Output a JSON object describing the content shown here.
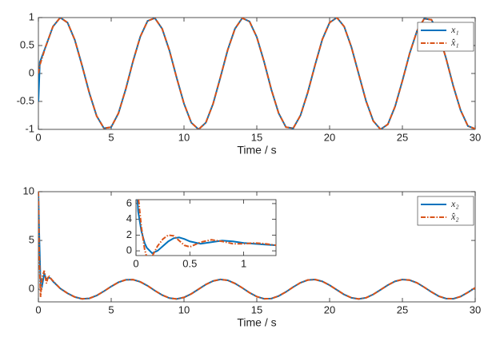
{
  "chart_data": [
    {
      "type": "line",
      "xlabel": "Time / s",
      "xlim": [
        0,
        30
      ],
      "ylim": [
        -1,
        1
      ],
      "xticks": [
        0,
        5,
        10,
        15,
        20,
        25,
        30
      ],
      "yticks": [
        -1,
        -0.5,
        0,
        0.5,
        1
      ],
      "legend": "northeast",
      "x": [
        0,
        0.1,
        0.5,
        1,
        1.5,
        2,
        2.5,
        3,
        3.5,
        4,
        4.5,
        5,
        5.5,
        6,
        6.5,
        7,
        7.5,
        8,
        8.5,
        9,
        9.5,
        10,
        10.5,
        11,
        11.5,
        12,
        12.5,
        13,
        13.5,
        14,
        14.5,
        15,
        15.5,
        16,
        16.5,
        17,
        17.5,
        18,
        18.5,
        19,
        19.5,
        20,
        20.5,
        21,
        21.5,
        22,
        22.5,
        23,
        23.5,
        24,
        24.5,
        25,
        25.5,
        26,
        26.5,
        27,
        27.5,
        28,
        28.5,
        29,
        29.5,
        30
      ],
      "series": [
        {
          "name": "x₁",
          "color": "#0072bd",
          "dash": false,
          "values": [
            -0.5,
            0.2,
            0.48,
            0.84,
            1.0,
            0.91,
            0.6,
            0.14,
            -0.35,
            -0.76,
            -0.98,
            -0.96,
            -0.71,
            -0.28,
            0.22,
            0.66,
            0.94,
            0.99,
            0.8,
            0.41,
            -0.08,
            -0.54,
            -0.88,
            -1.0,
            -0.88,
            -0.54,
            -0.07,
            0.42,
            0.8,
            0.99,
            0.93,
            0.65,
            0.21,
            -0.29,
            -0.71,
            -0.96,
            -0.98,
            -0.75,
            -0.34,
            0.15,
            0.61,
            0.91,
            1.0,
            0.84,
            0.47,
            -0.01,
            -0.49,
            -0.85,
            -1.0,
            -0.91,
            -0.59,
            -0.13,
            0.36,
            0.76,
            0.98,
            0.96,
            0.7,
            0.27,
            -0.23,
            -0.66,
            -0.94,
            -0.99
          ]
        },
        {
          "name": "x̂₁",
          "color": "#d95319",
          "dash": true,
          "values": [
            0,
            0.15,
            0.48,
            0.84,
            1.0,
            0.91,
            0.6,
            0.14,
            -0.35,
            -0.76,
            -0.98,
            -0.96,
            -0.71,
            -0.28,
            0.22,
            0.66,
            0.94,
            0.99,
            0.8,
            0.41,
            -0.08,
            -0.54,
            -0.88,
            -1.0,
            -0.88,
            -0.54,
            -0.07,
            0.42,
            0.8,
            0.99,
            0.93,
            0.65,
            0.21,
            -0.29,
            -0.71,
            -0.96,
            -0.98,
            -0.75,
            -0.34,
            0.15,
            0.61,
            0.91,
            1.0,
            0.84,
            0.47,
            -0.01,
            -0.49,
            -0.85,
            -1.0,
            -0.91,
            -0.59,
            -0.13,
            0.36,
            0.76,
            0.98,
            0.96,
            0.7,
            0.27,
            -0.23,
            -0.66,
            -0.94,
            -0.99
          ]
        }
      ]
    },
    {
      "type": "line",
      "xlabel": "Time / s",
      "xlim": [
        0,
        30
      ],
      "ylim": [
        -1.3,
        10
      ],
      "xticks": [
        0,
        5,
        10,
        15,
        20,
        25,
        30
      ],
      "yticks": [
        0,
        5,
        10
      ],
      "legend": "northeast",
      "x": [
        0,
        0.05,
        0.15,
        0.25,
        0.4,
        0.55,
        0.7,
        0.85,
        1,
        1.5,
        2,
        2.5,
        3,
        3.5,
        4,
        4.5,
        5,
        5.5,
        6,
        6.5,
        7,
        7.5,
        8,
        8.5,
        9,
        9.5,
        10,
        10.5,
        11,
        11.5,
        12,
        12.5,
        13,
        13.5,
        14,
        14.5,
        15,
        15.5,
        16,
        16.5,
        17,
        17.5,
        18,
        18.5,
        19,
        19.5,
        20,
        20.5,
        21,
        21.5,
        22,
        22.5,
        23,
        23.5,
        24,
        24.5,
        25,
        25.5,
        26,
        26.5,
        27,
        27.5,
        28,
        28.5,
        29,
        29.5,
        30
      ],
      "series": [
        {
          "name": "x₂",
          "color": "#0072bd",
          "dash": false,
          "values": [
            10,
            6,
            0.5,
            0.3,
            1.6,
            1.0,
            1.2,
            1.1,
            0.8,
            0.07,
            -0.42,
            -0.8,
            -0.99,
            -0.94,
            -0.65,
            -0.21,
            0.28,
            0.71,
            0.96,
            0.98,
            0.75,
            0.35,
            -0.15,
            -0.6,
            -0.91,
            -1.0,
            -0.84,
            -0.48,
            0.0,
            0.48,
            0.84,
            1.0,
            0.91,
            0.59,
            0.14,
            -0.36,
            -0.76,
            -0.98,
            -0.96,
            -0.7,
            -0.28,
            0.22,
            0.66,
            0.94,
            0.99,
            0.8,
            0.41,
            -0.07,
            -0.55,
            -0.88,
            -1.0,
            -0.88,
            -0.53,
            -0.06,
            0.42,
            0.81,
            0.99,
            0.93,
            0.65,
            0.2,
            -0.29,
            -0.72,
            -0.96,
            -0.98,
            -0.75,
            -0.33,
            0.15
          ]
        },
        {
          "name": "x̂₂",
          "color": "#d95319",
          "dash": true,
          "values": [
            10,
            4,
            -0.8,
            1.2,
            1.9,
            0.6,
            1.4,
            1.1,
            0.85,
            0.07,
            -0.42,
            -0.8,
            -0.99,
            -0.94,
            -0.65,
            -0.21,
            0.28,
            0.71,
            0.96,
            0.98,
            0.75,
            0.35,
            -0.15,
            -0.6,
            -0.91,
            -1.0,
            -0.84,
            -0.48,
            0.0,
            0.48,
            0.84,
            1.0,
            0.91,
            0.59,
            0.14,
            -0.36,
            -0.76,
            -0.98,
            -0.96,
            -0.7,
            -0.28,
            0.22,
            0.66,
            0.94,
            0.99,
            0.8,
            0.41,
            -0.07,
            -0.55,
            -0.88,
            -1.0,
            -0.88,
            -0.53,
            -0.06,
            0.42,
            0.81,
            0.99,
            0.93,
            0.65,
            0.2,
            -0.29,
            -0.72,
            -0.96,
            -0.98,
            -0.75,
            -0.33,
            0.15
          ]
        }
      ]
    },
    {
      "type": "line",
      "xlim": [
        0,
        1.3
      ],
      "ylim": [
        -0.6,
        6.5
      ],
      "xticks": [
        0,
        0.5,
        1
      ],
      "yticks": [
        0,
        2,
        4,
        6
      ],
      "x": [
        0,
        0.02,
        0.05,
        0.08,
        0.1,
        0.15,
        0.2,
        0.25,
        0.3,
        0.35,
        0.4,
        0.45,
        0.5,
        0.6,
        0.7,
        0.8,
        0.9,
        1,
        1.1,
        1.2,
        1.3
      ],
      "series": [
        {
          "color": "#0072bd",
          "dash": false,
          "values": [
            10,
            5,
            2.5,
            1.0,
            0.4,
            -0.3,
            0.0,
            0.6,
            1.2,
            1.6,
            1.7,
            1.5,
            1.2,
            0.9,
            1.1,
            1.3,
            1.2,
            1.0,
            0.9,
            0.8,
            0.7
          ]
        },
        {
          "color": "#d95319",
          "dash": true,
          "values": [
            10,
            7,
            3,
            0.2,
            -0.8,
            -0.7,
            0.6,
            1.5,
            2.0,
            1.9,
            1.3,
            0.7,
            0.5,
            1.1,
            1.4,
            1.2,
            0.9,
            0.9,
            1.0,
            0.9,
            0.7
          ]
        }
      ]
    }
  ]
}
